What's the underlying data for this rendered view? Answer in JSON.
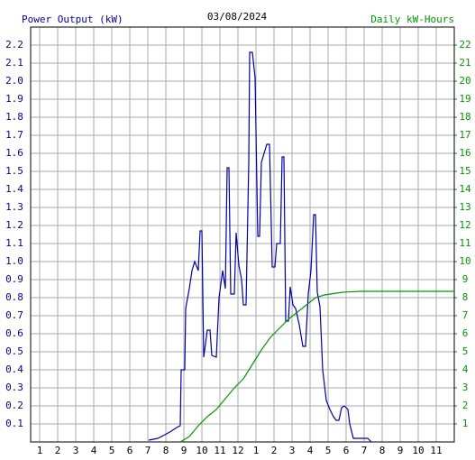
{
  "chart_data": {
    "type": "line",
    "title": "03/08/2024",
    "y_label": "Power Output (kW)",
    "y2_label": "Daily kW-Hours",
    "grid": true,
    "xlim": [
      0.5,
      24
    ],
    "xticks": [
      1,
      2,
      3,
      4,
      5,
      6,
      7,
      8,
      9,
      10,
      11,
      12,
      {
        "value": 13,
        "label": "1"
      },
      {
        "value": 14,
        "label": "2"
      },
      {
        "value": 15,
        "label": "3"
      },
      {
        "value": 16,
        "label": "4"
      },
      {
        "value": 17,
        "label": "5"
      },
      {
        "value": 18,
        "label": "6"
      },
      {
        "value": 19,
        "label": "7"
      },
      {
        "value": 20,
        "label": "8"
      },
      {
        "value": 21,
        "label": "9"
      },
      {
        "value": 22,
        "label": "10"
      },
      {
        "value": 23,
        "label": "11"
      }
    ],
    "ylim": [
      0,
      2.3
    ],
    "yticks": [
      0.1,
      0.2,
      0.3,
      0.4,
      0.5,
      0.6,
      0.7,
      0.8,
      0.9,
      {
        "value": 1,
        "label": "1.0"
      },
      1.1,
      1.2,
      1.3,
      1.4,
      1.5,
      1.6,
      1.7,
      1.8,
      1.9,
      {
        "value": 2,
        "label": "2.0"
      },
      2.1,
      2.2
    ],
    "y2lim": [
      0,
      23
    ],
    "y2ticks": [
      1,
      2,
      3,
      4,
      5,
      6,
      7,
      8,
      9,
      10,
      11,
      12,
      13,
      14,
      15,
      16,
      17,
      18,
      19,
      20,
      21,
      22
    ],
    "series": [
      {
        "name": "Power Output (kW)",
        "color": "#0000aa",
        "x": [
          7.05,
          7.55,
          7.95,
          8.3,
          8.6,
          8.8,
          8.85,
          9.05,
          9.1,
          9.3,
          9.45,
          9.6,
          9.8,
          9.9,
          10,
          10.1,
          10.3,
          10.45,
          10.55,
          10.8,
          10.95,
          11.15,
          11.3,
          11.4,
          11.5,
          11.6,
          11.8,
          11.9,
          12.05,
          12.2,
          12.3,
          12.45,
          12.6,
          12.65,
          12.8,
          12.95,
          13.1,
          13.2,
          13.3,
          13.45,
          13.6,
          13.75,
          13.9,
          14.05,
          14.15,
          14.35,
          14.45,
          14.55,
          14.65,
          14.8,
          14.9,
          15.05,
          15.2,
          15.4,
          15.6,
          15.75,
          15.9,
          16.05,
          16.2,
          16.3,
          16.4,
          16.55,
          16.7,
          16.9,
          17.1,
          17.3,
          17.45,
          17.6,
          17.75,
          17.9,
          18.1,
          18.2,
          18.4,
          19.2,
          19.4
        ],
        "values": [
          0.01,
          0.02,
          0.04,
          0.06,
          0.08,
          0.09,
          0.4,
          0.4,
          0.74,
          0.85,
          0.95,
          1.0,
          0.95,
          1.17,
          1.17,
          0.47,
          0.62,
          0.62,
          0.48,
          0.47,
          0.8,
          0.95,
          0.85,
          1.52,
          1.52,
          0.82,
          0.82,
          1.16,
          0.98,
          0.9,
          0.76,
          0.76,
          1.55,
          2.16,
          2.16,
          2.02,
          1.14,
          1.14,
          1.55,
          1.6,
          1.65,
          1.65,
          0.97,
          0.97,
          1.1,
          1.1,
          1.58,
          1.58,
          0.67,
          0.67,
          0.86,
          0.76,
          0.74,
          0.65,
          0.53,
          0.53,
          0.82,
          0.95,
          1.26,
          1.26,
          0.83,
          0.75,
          0.4,
          0.23,
          0.18,
          0.14,
          0.12,
          0.12,
          0.19,
          0.2,
          0.18,
          0.1,
          0.02,
          0.02,
          0
        ]
      },
      {
        "name": "Daily kW-Hours",
        "color": "#009900",
        "axis": "y2",
        "x": [
          8.8,
          9.3,
          9.8,
          10.3,
          10.8,
          11.3,
          11.8,
          12.3,
          12.8,
          13.3,
          13.8,
          14.3,
          14.8,
          15.3,
          15.8,
          16.3,
          16.8,
          17.8,
          18.8,
          24
        ],
        "values": [
          0,
          0.3,
          0.9,
          1.4,
          1.8,
          2.4,
          3.0,
          3.5,
          4.3,
          5.1,
          5.8,
          6.3,
          6.8,
          7.2,
          7.6,
          8.0,
          8.15,
          8.3,
          8.35,
          8.35
        ]
      }
    ]
  }
}
